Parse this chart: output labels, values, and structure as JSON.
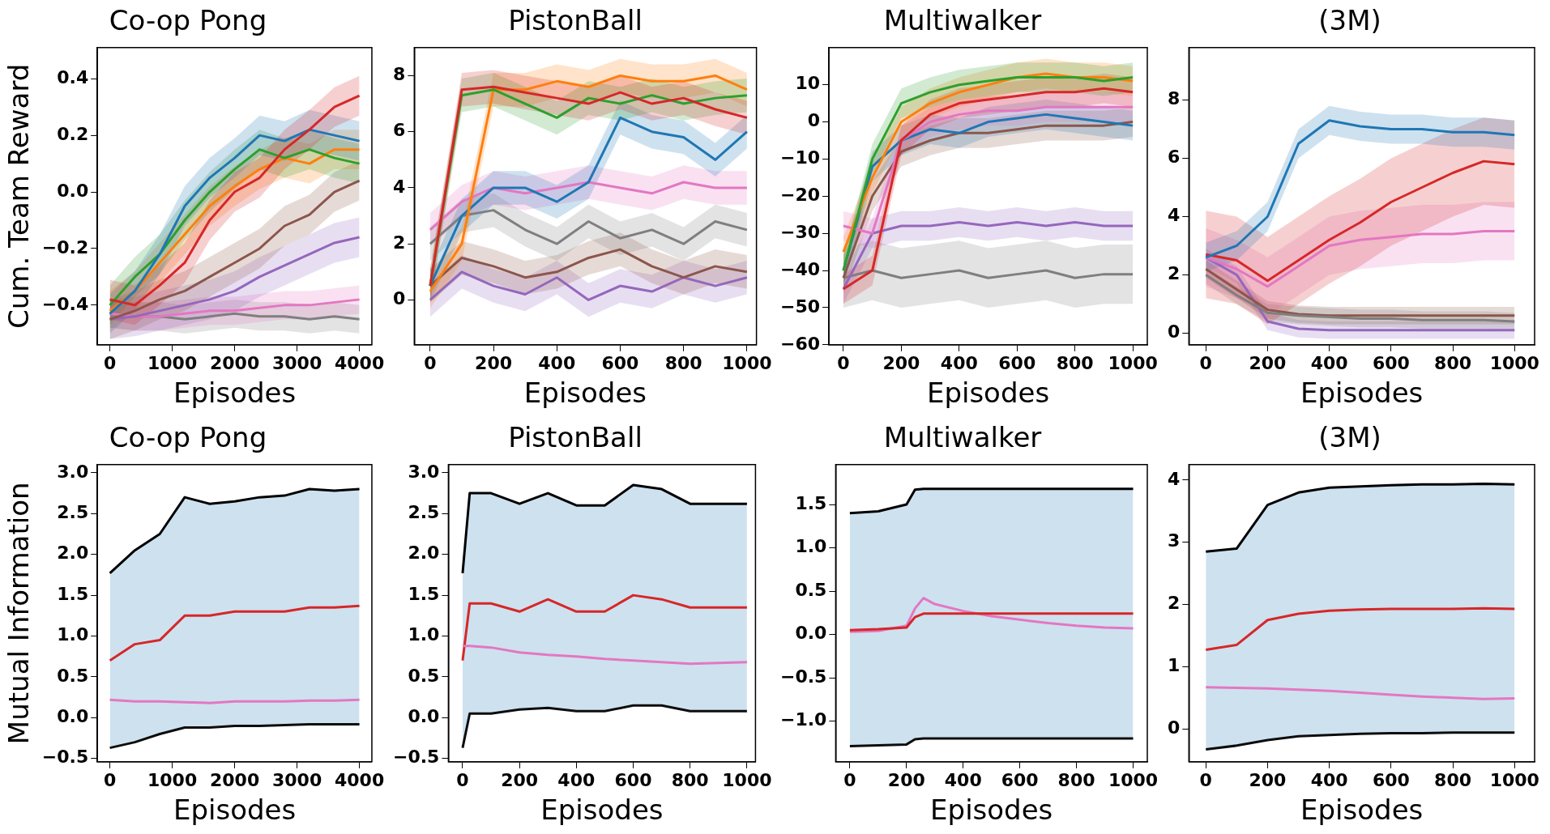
{
  "chart_data": [
    {
      "type": "line",
      "title": "Co-op Pong",
      "xlabel": "Episodes",
      "ylabel": "Cum. Team Reward",
      "x": [
        0,
        400,
        800,
        1200,
        1600,
        2000,
        2400,
        2800,
        3200,
        3600,
        4000
      ],
      "xlim": [
        -200,
        4200
      ],
      "xticks": [
        0,
        1000,
        2000,
        3000,
        4000
      ],
      "ylim": [
        -0.54,
        0.51
      ],
      "yticks": [
        {
          "value": -0.4,
          "label": "−0.4"
        },
        {
          "value": -0.2,
          "label": "−0.2"
        },
        {
          "value": 0,
          "label": "0.0"
        },
        {
          "value": 0.2,
          "label": "0.2"
        },
        {
          "value": 0.4,
          "label": "0.4"
        }
      ],
      "series": [
        {
          "color": "#7f7f7f",
          "values": [
            -0.43,
            -0.44,
            -0.44,
            -0.45,
            -0.44,
            -0.43,
            -0.44,
            -0.44,
            -0.45,
            -0.44,
            -0.45
          ],
          "lower": [
            -0.48,
            -0.49,
            -0.49,
            -0.5,
            -0.49,
            -0.48,
            -0.49,
            -0.49,
            -0.5,
            -0.49,
            -0.5
          ],
          "upper": [
            -0.38,
            -0.39,
            -0.39,
            -0.4,
            -0.39,
            -0.38,
            -0.39,
            -0.39,
            -0.4,
            -0.39,
            -0.4
          ]
        },
        {
          "color": "#e377c2",
          "values": [
            -0.43,
            -0.44,
            -0.44,
            -0.43,
            -0.42,
            -0.42,
            -0.41,
            -0.4,
            -0.4,
            -0.39,
            -0.38
          ],
          "lower": [
            -0.48,
            -0.49,
            -0.49,
            -0.48,
            -0.47,
            -0.47,
            -0.46,
            -0.45,
            -0.45,
            -0.44,
            -0.43
          ],
          "upper": [
            -0.38,
            -0.39,
            -0.39,
            -0.38,
            -0.37,
            -0.37,
            -0.36,
            -0.35,
            -0.35,
            -0.34,
            -0.33
          ]
        },
        {
          "color": "#9467bd",
          "values": [
            -0.45,
            -0.44,
            -0.42,
            -0.4,
            -0.38,
            -0.35,
            -0.3,
            -0.26,
            -0.22,
            -0.18,
            -0.16
          ],
          "lower": [
            -0.52,
            -0.51,
            -0.49,
            -0.47,
            -0.45,
            -0.42,
            -0.37,
            -0.33,
            -0.29,
            -0.25,
            -0.23
          ],
          "upper": [
            -0.38,
            -0.37,
            -0.35,
            -0.33,
            -0.31,
            -0.28,
            -0.23,
            -0.19,
            -0.15,
            -0.11,
            -0.09
          ]
        },
        {
          "color": "#8c564b",
          "values": [
            -0.45,
            -0.42,
            -0.38,
            -0.35,
            -0.3,
            -0.25,
            -0.2,
            -0.12,
            -0.08,
            0.0,
            0.04
          ],
          "lower": [
            -0.52,
            -0.49,
            -0.45,
            -0.42,
            -0.37,
            -0.32,
            -0.27,
            -0.19,
            -0.15,
            -0.07,
            -0.03
          ],
          "upper": [
            -0.38,
            -0.35,
            -0.31,
            -0.28,
            -0.23,
            -0.18,
            -0.13,
            -0.05,
            -0.01,
            0.07,
            0.11
          ]
        },
        {
          "color": "#ff7f0e",
          "values": [
            -0.42,
            -0.35,
            -0.25,
            -0.15,
            -0.05,
            0.02,
            0.08,
            0.12,
            0.1,
            0.15,
            0.15
          ],
          "lower": [
            -0.49,
            -0.42,
            -0.32,
            -0.22,
            -0.12,
            -0.05,
            0.01,
            0.05,
            0.03,
            0.08,
            0.08
          ],
          "upper": [
            -0.35,
            -0.28,
            -0.18,
            -0.08,
            0.02,
            0.09,
            0.15,
            0.19,
            0.17,
            0.22,
            0.22
          ]
        },
        {
          "color": "#2ca02c",
          "values": [
            -0.4,
            -0.3,
            -0.22,
            -0.1,
            0.0,
            0.08,
            0.15,
            0.12,
            0.15,
            0.12,
            0.1
          ],
          "lower": [
            -0.47,
            -0.37,
            -0.29,
            -0.17,
            -0.07,
            0.01,
            0.08,
            0.05,
            0.08,
            0.05,
            0.03
          ],
          "upper": [
            -0.33,
            -0.23,
            -0.15,
            -0.03,
            0.07,
            0.15,
            0.22,
            0.19,
            0.22,
            0.19,
            0.17
          ]
        },
        {
          "color": "#1f77b4",
          "values": [
            -0.43,
            -0.35,
            -0.22,
            -0.05,
            0.05,
            0.12,
            0.2,
            0.18,
            0.22,
            0.2,
            0.18
          ],
          "lower": [
            -0.5,
            -0.42,
            -0.29,
            -0.12,
            -0.02,
            0.05,
            0.13,
            0.11,
            0.15,
            0.13,
            0.11
          ],
          "upper": [
            -0.36,
            -0.28,
            -0.15,
            0.02,
            0.12,
            0.19,
            0.27,
            0.25,
            0.29,
            0.27,
            0.25
          ]
        },
        {
          "color": "#d62728",
          "values": [
            -0.38,
            -0.4,
            -0.33,
            -0.25,
            -0.1,
            0.0,
            0.05,
            0.15,
            0.22,
            0.3,
            0.34
          ],
          "lower": [
            -0.45,
            -0.47,
            -0.4,
            -0.32,
            -0.17,
            -0.07,
            -0.02,
            0.08,
            0.15,
            0.23,
            0.27
          ],
          "upper": [
            -0.31,
            -0.33,
            -0.26,
            -0.18,
            -0.03,
            0.07,
            0.12,
            0.22,
            0.29,
            0.37,
            0.41
          ]
        }
      ]
    },
    {
      "type": "line",
      "title": "PistonBall",
      "xlabel": "Episodes",
      "x": [
        0,
        100,
        200,
        300,
        400,
        500,
        600,
        700,
        800,
        900,
        1000
      ],
      "xlim": [
        -50,
        1030
      ],
      "xticks": [
        0,
        200,
        400,
        600,
        800,
        1000
      ],
      "ylim": [
        -1.6,
        9
      ],
      "yticks": [
        0,
        2,
        4,
        6,
        8
      ],
      "series": [
        {
          "color": "#9467bd",
          "values": [
            0,
            1.0,
            0.5,
            0.2,
            0.8,
            0.0,
            0.5,
            0.3,
            0.8,
            0.5,
            0.8
          ],
          "lower": [
            -0.6,
            0.4,
            -0.1,
            -0.4,
            0.2,
            -0.6,
            -0.1,
            -0.3,
            0.2,
            -0.1,
            0.2
          ],
          "upper": [
            0.6,
            1.6,
            1.1,
            0.8,
            1.4,
            0.6,
            1.1,
            0.9,
            1.4,
            1.1,
            1.4
          ]
        },
        {
          "color": "#8c564b",
          "values": [
            0.5,
            1.5,
            1.2,
            0.8,
            1.0,
            1.5,
            1.8,
            1.2,
            0.8,
            1.2,
            1.0
          ],
          "lower": [
            -0.1,
            0.9,
            0.6,
            0.2,
            0.4,
            0.9,
            1.2,
            0.6,
            0.2,
            0.6,
            0.4
          ],
          "upper": [
            1.1,
            2.1,
            1.8,
            1.4,
            1.6,
            2.1,
            2.4,
            1.8,
            1.4,
            1.8,
            1.6
          ]
        },
        {
          "color": "#7f7f7f",
          "values": [
            2.0,
            3.0,
            3.2,
            2.5,
            2.0,
            2.8,
            2.2,
            2.5,
            2.0,
            2.8,
            2.5
          ],
          "lower": [
            1.4,
            2.4,
            2.6,
            1.9,
            1.4,
            2.2,
            1.6,
            1.9,
            1.4,
            2.2,
            1.9
          ],
          "upper": [
            2.6,
            3.6,
            3.8,
            3.1,
            2.6,
            3.4,
            2.8,
            3.1,
            2.6,
            3.4,
            3.1
          ]
        },
        {
          "color": "#e377c2",
          "values": [
            2.5,
            3.5,
            4.0,
            3.8,
            4.0,
            4.2,
            4.0,
            3.8,
            4.2,
            4.0,
            4.0
          ],
          "lower": [
            1.9,
            2.9,
            3.4,
            3.2,
            3.4,
            3.6,
            3.4,
            3.2,
            3.6,
            3.4,
            3.4
          ],
          "upper": [
            3.1,
            4.1,
            4.6,
            4.4,
            4.6,
            4.8,
            4.6,
            4.4,
            4.8,
            4.6,
            4.6
          ]
        },
        {
          "color": "#1f77b4",
          "values": [
            0.5,
            3.0,
            4.0,
            4.0,
            3.5,
            4.2,
            6.5,
            6.0,
            5.8,
            5.0,
            6.0
          ],
          "lower": [
            -0.1,
            2.4,
            3.4,
            3.4,
            2.9,
            3.6,
            5.9,
            5.4,
            5.2,
            4.4,
            5.4
          ],
          "upper": [
            1.1,
            3.6,
            4.6,
            4.6,
            4.1,
            4.8,
            7.1,
            6.6,
            6.4,
            5.6,
            6.6
          ]
        },
        {
          "color": "#ff7f0e",
          "values": [
            0.3,
            2.0,
            7.5,
            7.5,
            7.8,
            7.6,
            8.0,
            7.8,
            7.8,
            8.0,
            7.5
          ],
          "lower": [
            -0.3,
            1.4,
            6.9,
            6.9,
            7.2,
            7.0,
            7.4,
            7.2,
            7.2,
            7.4,
            6.9
          ],
          "upper": [
            0.9,
            2.6,
            8.1,
            8.1,
            8.4,
            8.2,
            8.6,
            8.4,
            8.4,
            8.6,
            8.1
          ]
        },
        {
          "color": "#2ca02c",
          "values": [
            0.5,
            7.3,
            7.5,
            7.0,
            6.5,
            7.2,
            7.0,
            7.3,
            7.0,
            7.2,
            7.3
          ],
          "lower": [
            -0.1,
            6.7,
            6.9,
            6.4,
            5.9,
            6.6,
            6.4,
            6.7,
            6.4,
            6.6,
            6.7
          ],
          "upper": [
            1.1,
            7.9,
            8.1,
            7.6,
            7.1,
            7.8,
            7.6,
            7.9,
            7.6,
            7.8,
            7.9
          ]
        },
        {
          "color": "#d62728",
          "values": [
            0.5,
            7.5,
            7.6,
            7.4,
            7.2,
            7.0,
            7.4,
            7.0,
            7.2,
            6.8,
            6.5
          ],
          "lower": [
            -0.1,
            6.9,
            7.0,
            6.8,
            6.6,
            6.4,
            6.8,
            6.4,
            6.6,
            6.2,
            5.9
          ],
          "upper": [
            1.1,
            8.1,
            8.2,
            8.0,
            7.8,
            7.6,
            8.0,
            7.6,
            7.8,
            7.4,
            7.1
          ]
        }
      ]
    },
    {
      "type": "line",
      "title": "Multiwalker",
      "xlabel": "Episodes",
      "x": [
        0,
        100,
        200,
        300,
        400,
        500,
        600,
        700,
        800,
        900,
        1000
      ],
      "xlim": [
        -50,
        1050
      ],
      "xticks": [
        0,
        200,
        400,
        600,
        800,
        1000
      ],
      "ylim": [
        -60,
        20
      ],
      "yticks": [
        {
          "value": -60,
          "label": "−60"
        },
        {
          "value": -50,
          "label": "−50"
        },
        {
          "value": -40,
          "label": "−40"
        },
        {
          "value": -30,
          "label": "−30"
        },
        {
          "value": -20,
          "label": "−20"
        },
        {
          "value": -10,
          "label": "−10"
        },
        0,
        10
      ],
      "series": [
        {
          "color": "#7f7f7f",
          "values": [
            -42,
            -40,
            -42,
            -41,
            -40,
            -42,
            -41,
            -40,
            -42,
            -41,
            -41
          ],
          "lower": [
            -50,
            -48,
            -50,
            -49,
            -48,
            -50,
            -49,
            -48,
            -50,
            -49,
            -49
          ],
          "upper": [
            -34,
            -32,
            -34,
            -33,
            -32,
            -34,
            -33,
            -32,
            -34,
            -33,
            -33
          ]
        },
        {
          "color": "#9467bd",
          "values": [
            -45,
            -30,
            -28,
            -28,
            -27,
            -28,
            -27,
            -28,
            -27,
            -28,
            -28
          ],
          "lower": [
            -49,
            -34,
            -32,
            -32,
            -31,
            -32,
            -31,
            -32,
            -31,
            -32,
            -32
          ],
          "upper": [
            -41,
            -26,
            -24,
            -24,
            -23,
            -24,
            -23,
            -24,
            -23,
            -24,
            -24
          ]
        },
        {
          "color": "#8c564b",
          "values": [
            -42,
            -20,
            -8,
            -5,
            -3,
            -3,
            -2,
            -1,
            -1,
            -1,
            0
          ],
          "lower": [
            -46,
            -24,
            -12,
            -9,
            -7,
            -7,
            -6,
            -5,
            -5,
            -5,
            -4
          ],
          "upper": [
            -38,
            -16,
            -4,
            -1,
            1,
            1,
            2,
            3,
            3,
            3,
            4
          ]
        },
        {
          "color": "#1f77b4",
          "values": [
            -40,
            -12,
            -5,
            -2,
            -3,
            0,
            1,
            2,
            1,
            0,
            -1
          ],
          "lower": [
            -44,
            -16,
            -9,
            -6,
            -7,
            -4,
            -3,
            -2,
            -3,
            -4,
            -5
          ],
          "upper": [
            -36,
            -8,
            -1,
            2,
            1,
            4,
            5,
            6,
            5,
            4,
            3
          ]
        },
        {
          "color": "#e377c2",
          "values": [
            -28,
            -30,
            -5,
            0,
            2,
            3,
            3,
            4,
            4,
            4,
            4
          ],
          "lower": [
            -32,
            -34,
            -9,
            -4,
            -2,
            -1,
            -1,
            0,
            0,
            0,
            0
          ],
          "upper": [
            -24,
            -26,
            -1,
            4,
            6,
            7,
            7,
            8,
            8,
            8,
            8
          ]
        },
        {
          "color": "#d62728",
          "values": [
            -45,
            -40,
            -5,
            2,
            5,
            6,
            7,
            8,
            8,
            9,
            8
          ],
          "lower": [
            -49,
            -44,
            -9,
            -2,
            1,
            2,
            3,
            4,
            4,
            5,
            4
          ],
          "upper": [
            -41,
            -36,
            -1,
            6,
            9,
            10,
            11,
            12,
            12,
            13,
            12
          ]
        },
        {
          "color": "#ff7f0e",
          "values": [
            -35,
            -15,
            0,
            5,
            8,
            10,
            12,
            13,
            12,
            12,
            11
          ],
          "lower": [
            -39,
            -19,
            -4,
            1,
            4,
            6,
            8,
            9,
            8,
            8,
            7
          ],
          "upper": [
            -31,
            -11,
            4,
            9,
            12,
            14,
            16,
            17,
            16,
            16,
            15
          ]
        },
        {
          "color": "#2ca02c",
          "values": [
            -40,
            -10,
            5,
            8,
            10,
            11,
            12,
            12,
            12,
            11,
            12
          ],
          "lower": [
            -44,
            -14,
            1,
            4,
            6,
            7,
            8,
            8,
            8,
            7,
            8
          ],
          "upper": [
            -36,
            -6,
            9,
            12,
            14,
            15,
            16,
            16,
            16,
            15,
            16
          ]
        }
      ]
    },
    {
      "type": "line",
      "title": "(3M)",
      "xlabel": "Episodes",
      "x": [
        0,
        100,
        200,
        300,
        400,
        500,
        600,
        700,
        800,
        900,
        1000
      ],
      "xlim": [
        -55,
        1065
      ],
      "xticks": [
        0,
        200,
        400,
        600,
        800,
        1000
      ],
      "ylim": [
        -0.4,
        9.8
      ],
      "yticks": [
        0,
        2,
        4,
        6,
        8
      ],
      "series": [
        {
          "color": "#9467bd",
          "values": [
            2.6,
            2.0,
            0.4,
            0.15,
            0.1,
            0.1,
            0.1,
            0.1,
            0.1,
            0.1,
            0.1
          ],
          "lower": [
            2.3,
            1.7,
            0.1,
            -0.15,
            -0.2,
            -0.2,
            -0.2,
            -0.2,
            -0.2,
            -0.2,
            -0.2
          ],
          "upper": [
            2.9,
            2.3,
            0.7,
            0.45,
            0.4,
            0.4,
            0.4,
            0.4,
            0.4,
            0.4,
            0.4
          ]
        },
        {
          "color": "#8c564b",
          "values": [
            2.2,
            1.5,
            0.8,
            0.65,
            0.6,
            0.6,
            0.6,
            0.6,
            0.6,
            0.6,
            0.6
          ],
          "lower": [
            1.9,
            1.2,
            0.5,
            0.35,
            0.3,
            0.3,
            0.3,
            0.3,
            0.3,
            0.3,
            0.3
          ],
          "upper": [
            2.5,
            1.8,
            1.1,
            0.95,
            0.9,
            0.9,
            0.9,
            0.9,
            0.9,
            0.9,
            0.9
          ]
        },
        {
          "color": "#7f7f7f",
          "values": [
            2.0,
            1.3,
            0.7,
            0.6,
            0.55,
            0.5,
            0.5,
            0.45,
            0.45,
            0.45,
            0.4
          ],
          "lower": [
            1.7,
            1.0,
            0.4,
            0.3,
            0.25,
            0.2,
            0.2,
            0.15,
            0.15,
            0.15,
            0.1
          ],
          "upper": [
            2.3,
            1.6,
            1.0,
            0.9,
            0.85,
            0.8,
            0.8,
            0.75,
            0.75,
            0.75,
            0.7
          ]
        },
        {
          "color": "#e377c2",
          "values": [
            2.6,
            2.2,
            1.6,
            2.3,
            3.0,
            3.2,
            3.3,
            3.4,
            3.4,
            3.5,
            3.5
          ],
          "lower": [
            1.6,
            1.2,
            0.6,
            1.3,
            2.0,
            2.2,
            2.3,
            2.4,
            2.4,
            2.5,
            2.5
          ],
          "upper": [
            3.6,
            3.2,
            2.6,
            3.3,
            4.0,
            4.2,
            4.3,
            4.4,
            4.4,
            4.5,
            4.5
          ]
        },
        {
          "color": "#d62728",
          "values": [
            2.7,
            2.5,
            1.8,
            2.5,
            3.2,
            3.8,
            4.5,
            5.0,
            5.5,
            5.9,
            5.8
          ],
          "lower": [
            1.2,
            1.0,
            0.3,
            1.0,
            1.7,
            2.3,
            3.0,
            3.5,
            4.0,
            4.4,
            4.3
          ],
          "upper": [
            4.2,
            4.0,
            3.3,
            4.0,
            4.7,
            5.3,
            6.0,
            6.5,
            7.0,
            7.4,
            7.3
          ]
        },
        {
          "color": "#1f77b4",
          "values": [
            2.6,
            3.0,
            4.0,
            6.5,
            7.3,
            7.1,
            7.0,
            7.0,
            6.9,
            6.9,
            6.8
          ],
          "lower": [
            2.1,
            2.5,
            3.5,
            6.0,
            6.8,
            6.6,
            6.5,
            6.5,
            6.4,
            6.4,
            6.3
          ],
          "upper": [
            3.1,
            3.5,
            4.5,
            7.0,
            7.8,
            7.6,
            7.5,
            7.5,
            7.4,
            7.4,
            7.3
          ]
        }
      ]
    },
    {
      "type": "line",
      "title": "Co-op Pong",
      "xlabel": "Episodes",
      "ylabel": "Mutual Information",
      "x": [
        0,
        400,
        800,
        1200,
        1600,
        2000,
        2400,
        2800,
        3200,
        3600,
        4000
      ],
      "xlim": [
        -200,
        4200
      ],
      "xticks": [
        0,
        1000,
        2000,
        3000,
        4000
      ],
      "ylim": [
        -0.54,
        3.1
      ],
      "yticks": [
        {
          "value": -0.5,
          "label": "−0.5"
        },
        {
          "value": 0,
          "label": "0.0"
        },
        0.5,
        {
          "value": 1,
          "label": "1.0"
        },
        1.5,
        {
          "value": 2,
          "label": "2.0"
        },
        2.5,
        {
          "value": 3,
          "label": "3.0"
        }
      ],
      "series": [
        {
          "color": "#1f77b4",
          "values": [
            null,
            null,
            null,
            null,
            null,
            null,
            null,
            null,
            null,
            null,
            null
          ],
          "lower": [
            -0.37,
            -0.3,
            -0.2,
            -0.12,
            -0.12,
            -0.1,
            -0.1,
            -0.09,
            -0.08,
            -0.08,
            -0.08
          ],
          "upper": [
            1.77,
            2.05,
            2.25,
            2.7,
            2.62,
            2.65,
            2.7,
            2.72,
            2.8,
            2.78,
            2.8
          ]
        },
        {
          "color": "#000000",
          "values": [
            1.77,
            2.05,
            2.25,
            2.7,
            2.62,
            2.65,
            2.7,
            2.72,
            2.8,
            2.78,
            2.8
          ]
        },
        {
          "color": "#d62728",
          "values": [
            0.7,
            0.9,
            0.95,
            1.25,
            1.25,
            1.3,
            1.3,
            1.3,
            1.35,
            1.35,
            1.37
          ]
        },
        {
          "color": "#e377c2",
          "values": [
            0.22,
            0.2,
            0.2,
            0.19,
            0.18,
            0.2,
            0.2,
            0.2,
            0.21,
            0.21,
            0.22
          ]
        },
        {
          "color": "#0d0d0d",
          "values": [
            -0.37,
            -0.3,
            -0.2,
            -0.12,
            -0.12,
            -0.1,
            -0.1,
            -0.09,
            -0.08,
            -0.08,
            -0.08
          ]
        }
      ]
    },
    {
      "type": "line",
      "title": "PistonBall",
      "xlabel": "Episodes",
      "x": [
        0,
        25,
        100,
        200,
        300,
        400,
        500,
        600,
        700,
        800,
        900,
        1000
      ],
      "xlim": [
        -50,
        1030
      ],
      "xticks": [
        0,
        200,
        400,
        600,
        800,
        1000
      ],
      "ylim": [
        -0.54,
        3.1
      ],
      "yticks": [
        {
          "value": -0.5,
          "label": "−0.5"
        },
        {
          "value": 0,
          "label": "0.0"
        },
        0.5,
        {
          "value": 1,
          "label": "1.0"
        },
        1.5,
        {
          "value": 2,
          "label": "2.0"
        },
        2.5,
        {
          "value": 3,
          "label": "3.0"
        }
      ],
      "series": [
        {
          "color": "#1f77b4",
          "values": [
            null,
            null,
            null,
            null,
            null,
            null,
            null,
            null,
            null,
            null,
            null,
            null
          ],
          "lower": [
            -0.37,
            0.05,
            0.05,
            0.1,
            0.12,
            0.08,
            0.08,
            0.15,
            0.15,
            0.08,
            0.08,
            0.08
          ],
          "upper": [
            1.77,
            2.75,
            2.75,
            2.62,
            2.75,
            2.6,
            2.6,
            2.85,
            2.8,
            2.62,
            2.62,
            2.62
          ]
        },
        {
          "color": "#000000",
          "values": [
            1.77,
            2.75,
            2.75,
            2.62,
            2.75,
            2.6,
            2.6,
            2.85,
            2.8,
            2.62,
            2.62,
            2.62
          ]
        },
        {
          "color": "#d62728",
          "values": [
            0.7,
            1.4,
            1.4,
            1.3,
            1.45,
            1.3,
            1.3,
            1.5,
            1.45,
            1.35,
            1.35,
            1.35
          ]
        },
        {
          "color": "#e377c2",
          "values": [
            0.88,
            0.88,
            0.86,
            0.8,
            0.77,
            0.75,
            0.72,
            0.7,
            0.68,
            0.66,
            0.67,
            0.68
          ]
        },
        {
          "color": "#0d0d0d",
          "values": [
            -0.37,
            0.05,
            0.05,
            0.1,
            0.12,
            0.08,
            0.08,
            0.15,
            0.15,
            0.08,
            0.08,
            0.08
          ]
        }
      ]
    },
    {
      "type": "line",
      "title": "Multiwalker",
      "xlabel": "Episodes",
      "x": [
        0,
        100,
        200,
        230,
        260,
        300,
        400,
        500,
        600,
        700,
        800,
        900,
        1000
      ],
      "xlim": [
        -50,
        1050
      ],
      "xticks": [
        0,
        200,
        400,
        600,
        800,
        1000
      ],
      "ylim": [
        -1.47,
        1.96
      ],
      "yticks": [
        {
          "value": -1,
          "label": "−1.0"
        },
        {
          "value": -0.5,
          "label": "−0.5"
        },
        {
          "value": 0,
          "label": "0.0"
        },
        0.5,
        {
          "value": 1,
          "label": "1.0"
        },
        1.5
      ],
      "series": [
        {
          "color": "#1f77b4",
          "values": [
            null,
            null,
            null,
            null,
            null,
            null,
            null,
            null,
            null,
            null,
            null,
            null,
            null
          ],
          "lower": [
            -1.29,
            -1.28,
            -1.27,
            -1.21,
            -1.2,
            -1.2,
            -1.2,
            -1.2,
            -1.2,
            -1.2,
            -1.2,
            -1.2,
            -1.2
          ],
          "upper": [
            1.4,
            1.42,
            1.5,
            1.67,
            1.68,
            1.68,
            1.68,
            1.68,
            1.68,
            1.68,
            1.68,
            1.68,
            1.68
          ]
        },
        {
          "color": "#000000",
          "values": [
            1.4,
            1.42,
            1.5,
            1.67,
            1.68,
            1.68,
            1.68,
            1.68,
            1.68,
            1.68,
            1.68,
            1.68,
            1.68
          ]
        },
        {
          "color": "#e377c2",
          "values": [
            0.03,
            0.04,
            0.1,
            0.3,
            0.42,
            0.35,
            0.27,
            0.21,
            0.17,
            0.13,
            0.1,
            0.08,
            0.07
          ]
        },
        {
          "color": "#d62728",
          "values": [
            0.05,
            0.06,
            0.08,
            0.2,
            0.24,
            0.24,
            0.24,
            0.24,
            0.24,
            0.24,
            0.24,
            0.24,
            0.24
          ]
        },
        {
          "color": "#0d0d0d",
          "values": [
            -1.29,
            -1.28,
            -1.27,
            -1.21,
            -1.2,
            -1.2,
            -1.2,
            -1.2,
            -1.2,
            -1.2,
            -1.2,
            -1.2,
            -1.2
          ]
        }
      ]
    },
    {
      "type": "line",
      "title": "(3M)",
      "xlabel": "Episodes",
      "x": [
        0,
        100,
        200,
        300,
        400,
        500,
        600,
        700,
        800,
        900,
        1000
      ],
      "xlim": [
        -55,
        1065
      ],
      "xticks": [
        0,
        200,
        400,
        600,
        800,
        1000
      ],
      "ylim": [
        -0.53,
        4.25
      ],
      "yticks": [
        0,
        1,
        2,
        3,
        4
      ],
      "series": [
        {
          "color": "#1f77b4",
          "values": [
            null,
            null,
            null,
            null,
            null,
            null,
            null,
            null,
            null,
            null,
            null
          ],
          "lower": [
            -0.33,
            -0.27,
            -0.18,
            -0.12,
            -0.1,
            -0.08,
            -0.07,
            -0.07,
            -0.06,
            -0.06,
            -0.06
          ],
          "upper": [
            2.85,
            2.9,
            3.6,
            3.8,
            3.88,
            3.9,
            3.92,
            3.93,
            3.93,
            3.94,
            3.93
          ]
        },
        {
          "color": "#000000",
          "values": [
            2.85,
            2.9,
            3.6,
            3.8,
            3.88,
            3.9,
            3.92,
            3.93,
            3.93,
            3.94,
            3.93
          ]
        },
        {
          "color": "#d62728",
          "values": [
            1.27,
            1.35,
            1.75,
            1.85,
            1.9,
            1.92,
            1.93,
            1.93,
            1.93,
            1.94,
            1.93
          ]
        },
        {
          "color": "#e377c2",
          "values": [
            0.67,
            0.66,
            0.65,
            0.63,
            0.61,
            0.58,
            0.55,
            0.52,
            0.5,
            0.48,
            0.49
          ]
        },
        {
          "color": "#0d0d0d",
          "values": [
            -0.33,
            -0.27,
            -0.18,
            -0.12,
            -0.1,
            -0.08,
            -0.07,
            -0.07,
            -0.06,
            -0.06,
            -0.06
          ]
        }
      ]
    }
  ]
}
